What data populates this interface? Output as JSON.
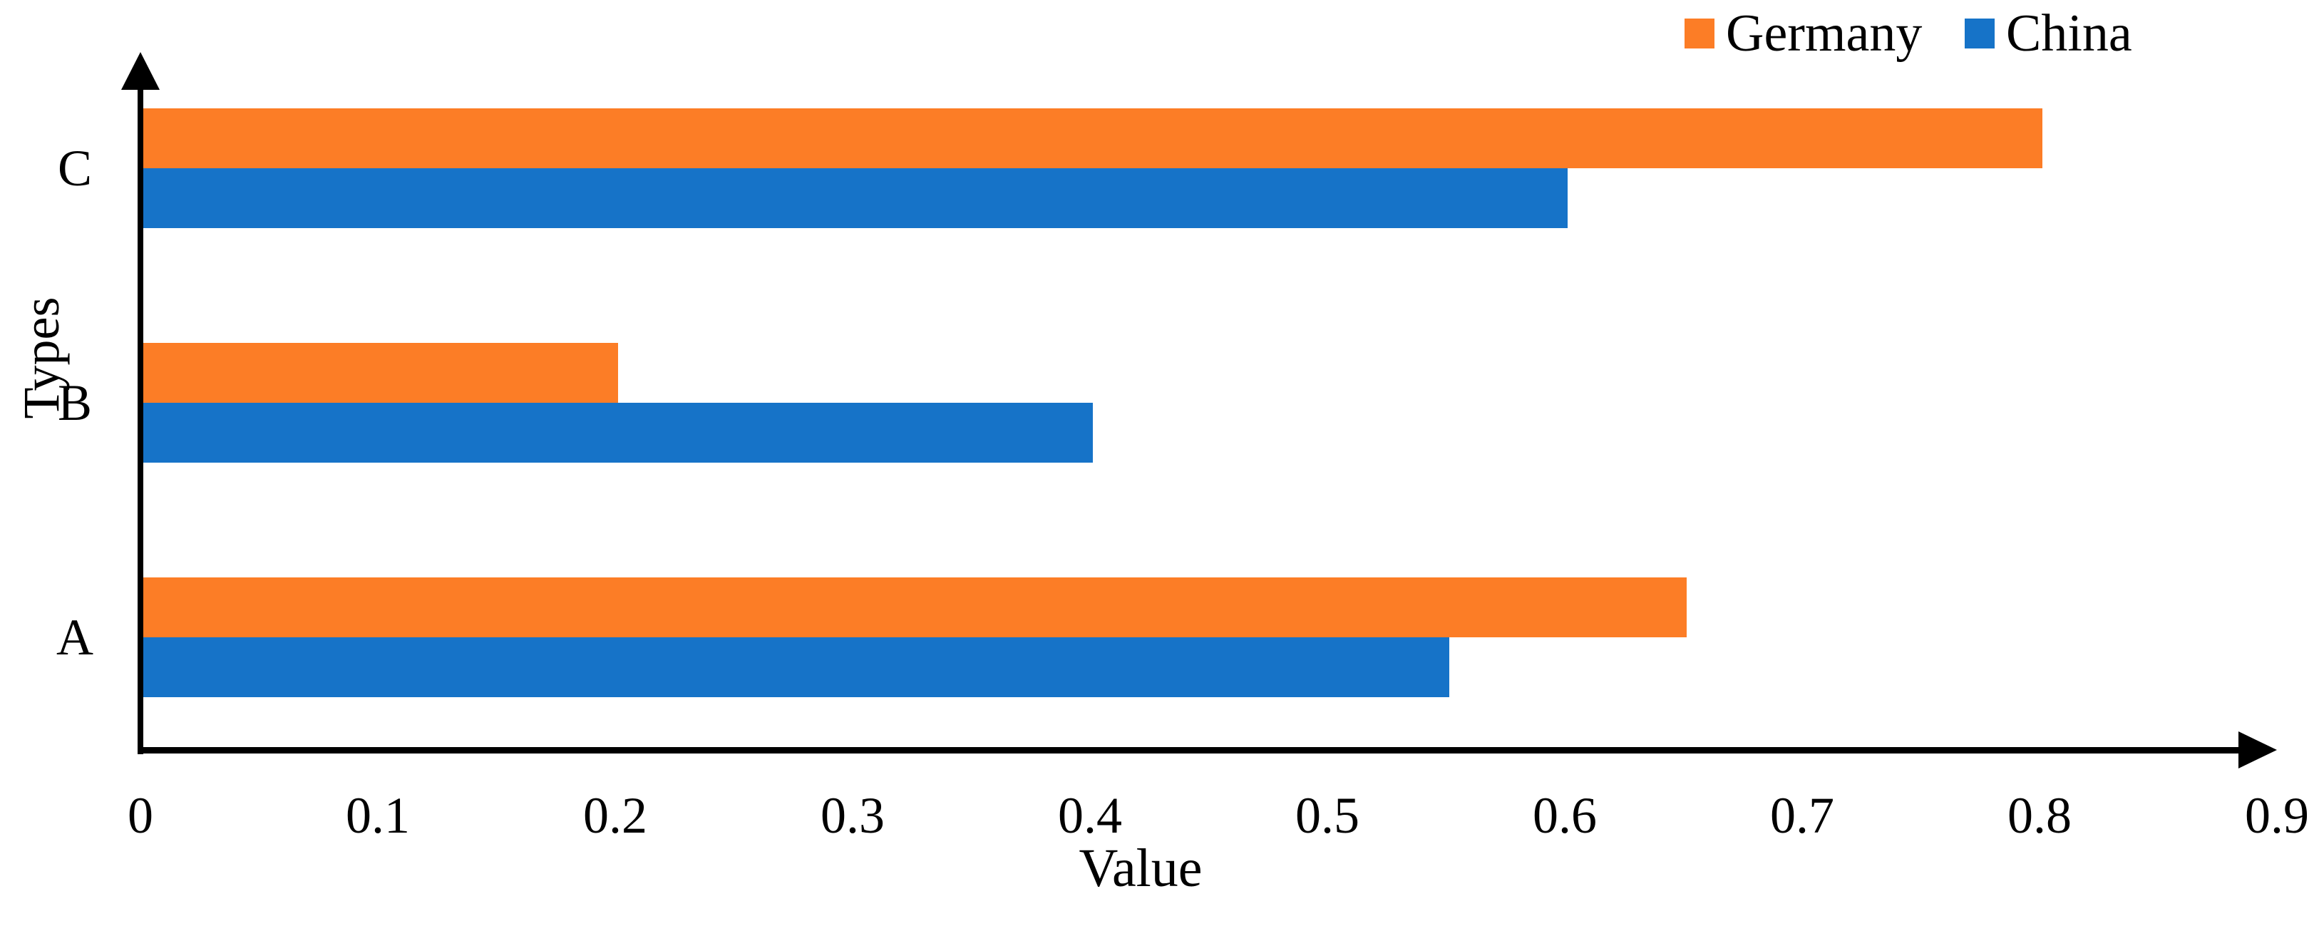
{
  "chart_data": {
    "type": "bar",
    "orientation": "horizontal",
    "categories": [
      "A",
      "B",
      "C"
    ],
    "series": [
      {
        "name": "Germany",
        "color": "#FC7D26",
        "values": [
          0.65,
          0.2,
          0.8
        ]
      },
      {
        "name": "China",
        "color": "#1673C8",
        "values": [
          0.55,
          0.4,
          0.6
        ]
      }
    ],
    "xlabel": "Value",
    "ylabel": "Types",
    "xlim": [
      0,
      0.9
    ],
    "xtick_values": [
      0,
      0.1,
      0.2,
      0.3,
      0.4,
      0.5,
      0.6,
      0.7,
      0.8,
      0.9
    ],
    "xtick_labels": [
      "0",
      "0.1",
      "0.2",
      "0.3",
      "0.4",
      "0.5",
      "0.6",
      "0.7",
      "0.8",
      "0.9"
    ],
    "legend": {
      "position": "top-right",
      "entries": [
        "Germany",
        "China"
      ]
    },
    "grid": false,
    "axis_color": "#000000",
    "background_color": "#FFFFFF"
  }
}
